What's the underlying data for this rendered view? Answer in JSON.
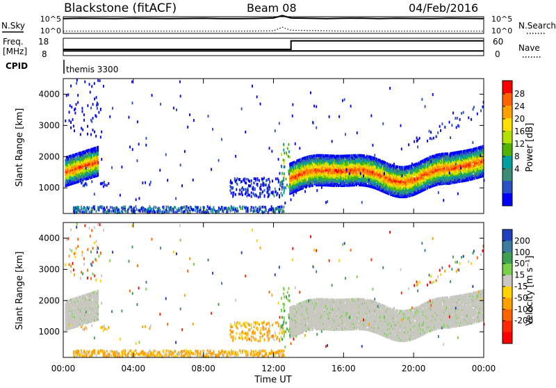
{
  "header": {
    "station": "Blackstone (fitACF)",
    "beam": "Beam 08",
    "date": "04/Feb/2016"
  },
  "noise_panel": {
    "left_label": "N.Sky",
    "right_label": "N.Search",
    "left_ticks": [
      "10^5",
      "10^0"
    ],
    "right_ticks": [
      "10^5",
      "10^0"
    ]
  },
  "freq_panel": {
    "left_label_line1": "Freq.",
    "left_label_line2": "[MHz]",
    "left_ticks": [
      "18",
      "8"
    ],
    "right_label": "Nave",
    "right_ticks": [
      "60",
      "0"
    ]
  },
  "cpid_panel": {
    "label": "CPID",
    "program": "themis 3300"
  },
  "x_axis": {
    "label": "Time UT",
    "ticks": [
      "00:00",
      "04:00",
      "08:00",
      "12:00",
      "16:00",
      "20:00",
      "00:00"
    ]
  },
  "power_colorbar": {
    "label": "Power [dB]",
    "ticks": [
      "28",
      "24",
      "20",
      "16",
      "12",
      "8",
      "4"
    ],
    "colors": [
      "#ff0000",
      "#ff6400",
      "#ffa000",
      "#ffe000",
      "#b4e100",
      "#50b400",
      "#00a0a0",
      "#3c8c78",
      "#2850c8",
      "#0000ff"
    ]
  },
  "velocity_colorbar": {
    "label": "Velocity [m s⁻¹]",
    "ticks": [
      "200",
      "100",
      "50",
      "15",
      "-15",
      "-50",
      "-100",
      "-200"
    ],
    "colors": [
      "#2040c0",
      "#3c7ca0",
      "#3ca050",
      "#78d048",
      "#c8c8c0",
      "#ffd200",
      "#ffa000",
      "#ff6400",
      "#ff2800",
      "#ff0000"
    ]
  },
  "chart_data": [
    {
      "type": "line",
      "panel": "noise",
      "series": [
        {
          "name": "N.Sky",
          "x": [
            0,
            1,
            2,
            3,
            4,
            5,
            6,
            7,
            8,
            9,
            10,
            11,
            12,
            12.5,
            13,
            14,
            15,
            16,
            17,
            18,
            19,
            20,
            21,
            22,
            23,
            24
          ],
          "values": [
            4.6,
            4.7,
            4.65,
            4.6,
            4.7,
            4.65,
            4.6,
            4.65,
            4.7,
            4.6,
            4.6,
            4.65,
            4.8,
            5.6,
            4.8,
            4.7,
            4.6,
            4.7,
            4.75,
            4.6,
            4.7,
            4.65,
            4.6,
            4.7,
            4.65,
            4.6
          ]
        },
        {
          "name": "N.Search",
          "x": [
            0,
            2,
            4,
            6,
            8,
            10,
            12,
            12.5,
            13,
            16,
            20,
            24
          ],
          "values": [
            0.5,
            0.5,
            0.5,
            0.5,
            0.5,
            0.5,
            0.6,
            1.8,
            0.8,
            0.5,
            0.5,
            0.5
          ]
        }
      ],
      "ylim": [
        0,
        5
      ],
      "yscale": "log"
    },
    {
      "type": "line",
      "panel": "frequency",
      "series": [
        {
          "name": "Freq.",
          "x": [
            0,
            13,
            13,
            24
          ],
          "values": [
            10.5,
            10.5,
            10.5,
            10.5
          ]
        },
        {
          "name": "Nave",
          "x": [
            0,
            13,
            13,
            24
          ],
          "values": [
            21,
            21,
            53,
            53
          ]
        }
      ],
      "ylim": [
        8,
        18
      ],
      "y2lim": [
        0,
        60
      ]
    },
    {
      "type": "heatmap",
      "panel": "power",
      "title": "",
      "xlabel": "",
      "ylabel": "Slant Range [km]",
      "xlim": [
        0,
        24
      ],
      "ylim": [
        180,
        4500
      ],
      "yticks": [
        1000,
        2000,
        3000,
        4000
      ],
      "clim": [
        0,
        30
      ],
      "colorbar_label": "Power [dB]"
    },
    {
      "type": "heatmap",
      "panel": "velocity",
      "xlabel": "Time UT",
      "ylabel": "Slant Range [km]",
      "xlim": [
        0,
        24
      ],
      "ylim": [
        180,
        4500
      ],
      "yticks": [
        1000,
        2000,
        3000,
        4000
      ],
      "clim": [
        -250,
        250
      ],
      "colorbar_label": "Velocity [m s⁻¹]"
    }
  ]
}
